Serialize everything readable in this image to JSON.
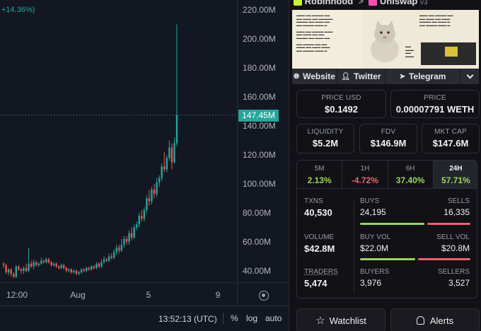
{
  "chart": {
    "change_label": "+14.36%)",
    "current_price_tag": "147.45M",
    "current_price": 147.45,
    "y_ticks": [
      "220.00M",
      "200.00M",
      "180.00M",
      "160.00M",
      "140.00M",
      "120.00M",
      "100.00M",
      "80.00M",
      "60.00M",
      "40.00M"
    ],
    "x_ticks": [
      "12:00",
      "Aug",
      "5",
      "9"
    ],
    "time": "13:52:13 (UTC)",
    "controls": [
      "%",
      "log",
      "auto"
    ],
    "colors": {
      "up": "#26a69a",
      "down": "#ef5350",
      "bg": "#131722"
    }
  },
  "chart_data": {
    "type": "candlestick",
    "ylim": [
      30,
      228
    ],
    "y_unit": "M",
    "candles": [
      [
        45,
        44,
        46,
        42
      ],
      [
        44,
        39,
        45,
        38
      ],
      [
        39,
        41,
        42,
        37
      ],
      [
        41,
        38,
        42,
        36
      ],
      [
        38,
        36,
        39,
        35
      ],
      [
        36,
        43,
        44,
        35
      ],
      [
        43,
        41,
        44,
        40
      ],
      [
        41,
        40,
        42,
        38
      ],
      [
        40,
        42,
        43,
        38
      ],
      [
        42,
        40,
        45,
        39
      ],
      [
        40,
        45,
        56,
        39
      ],
      [
        45,
        43,
        47,
        42
      ],
      [
        43,
        46,
        48,
        41
      ],
      [
        46,
        44,
        47,
        43
      ],
      [
        44,
        45,
        46,
        43
      ],
      [
        45,
        47,
        49,
        44
      ],
      [
        47,
        46,
        48,
        45
      ],
      [
        46,
        48,
        49,
        45
      ],
      [
        48,
        46,
        49,
        45
      ],
      [
        46,
        44,
        47,
        43
      ],
      [
        44,
        45,
        46,
        43
      ],
      [
        45,
        43,
        46,
        42
      ],
      [
        43,
        42,
        44,
        41
      ],
      [
        42,
        44,
        45,
        41
      ],
      [
        44,
        42,
        45,
        41
      ],
      [
        42,
        40,
        43,
        39
      ],
      [
        40,
        41,
        42,
        39
      ],
      [
        41,
        39,
        42,
        38
      ],
      [
        39,
        40,
        41,
        38
      ],
      [
        40,
        38,
        41,
        37
      ],
      [
        38,
        39,
        40,
        37
      ],
      [
        39,
        41,
        42,
        38
      ],
      [
        41,
        40,
        42,
        39
      ],
      [
        40,
        42,
        43,
        39
      ],
      [
        42,
        41,
        43,
        40
      ],
      [
        41,
        43,
        44,
        40
      ],
      [
        43,
        42,
        44,
        41
      ],
      [
        42,
        45,
        46,
        41
      ],
      [
        45,
        43,
        46,
        42
      ],
      [
        43,
        46,
        48,
        42
      ],
      [
        46,
        48,
        50,
        45
      ],
      [
        48,
        47,
        49,
        46
      ],
      [
        47,
        50,
        52,
        46
      ],
      [
        50,
        49,
        52,
        48
      ],
      [
        49,
        53,
        55,
        48
      ],
      [
        53,
        56,
        58,
        51
      ],
      [
        56,
        54,
        58,
        52
      ],
      [
        54,
        58,
        62,
        53
      ],
      [
        58,
        62,
        64,
        56
      ],
      [
        62,
        60,
        64,
        58
      ],
      [
        60,
        66,
        68,
        58
      ],
      [
        66,
        63,
        70,
        61
      ],
      [
        63,
        70,
        72,
        62
      ],
      [
        70,
        72,
        74,
        68
      ],
      [
        72,
        78,
        80,
        70
      ],
      [
        78,
        76,
        82,
        74
      ],
      [
        76,
        82,
        84,
        74
      ],
      [
        82,
        90,
        92,
        80
      ],
      [
        90,
        88,
        96,
        85
      ],
      [
        88,
        96,
        98,
        86
      ],
      [
        96,
        93,
        100,
        90
      ],
      [
        93,
        101,
        104,
        91
      ],
      [
        101,
        104,
        106,
        98
      ],
      [
        104,
        112,
        114,
        102
      ],
      [
        112,
        110,
        122,
        108
      ],
      [
        110,
        118,
        120,
        108
      ],
      [
        118,
        125,
        130,
        116
      ],
      [
        125,
        115,
        128,
        110
      ],
      [
        115,
        128,
        132,
        114
      ],
      [
        128,
        147.45,
        210,
        126
      ]
    ]
  },
  "token": {
    "chain_name": "Robinhood",
    "dex_name": "Uniswap",
    "dex_version": "v3"
  },
  "links": {
    "website": "Website",
    "twitter": "Twitter",
    "telegram": "Telegram"
  },
  "prices": {
    "usd_label": "PRICE USD",
    "usd_value": "$0.1492",
    "native_label": "PRICE",
    "native_value": "0.00007791 WETH"
  },
  "metrics": {
    "liquidity_label": "LIQUIDITY",
    "liquidity_value": "$5.2M",
    "fdv_label": "FDV",
    "fdv_value": "$146.9M",
    "mcap_label": "MKT CAP",
    "mcap_value": "$147.6M"
  },
  "timeframes": [
    {
      "label": "5M",
      "value": "2.13%",
      "dir": "pos"
    },
    {
      "label": "1H",
      "value": "-4.72%",
      "dir": "neg"
    },
    {
      "label": "6H",
      "value": "37.40%",
      "dir": "pos"
    },
    {
      "label": "24H",
      "value": "57.71%",
      "dir": "pos",
      "active": true
    }
  ],
  "stats": {
    "txns_label": "TXNS",
    "txns_value": "40,530",
    "buys_label": "BUYS",
    "buys_value": "24,195",
    "sells_label": "SELLS",
    "sells_value": "16,335",
    "buys_share": 0.597,
    "volume_label": "VOLUME",
    "volume_value": "$42.8M",
    "buyvol_label": "BUY VOL",
    "buyvol_value": "$22.0M",
    "sellvol_label": "SELL VOL",
    "sellvol_value": "$20.8M",
    "buyvol_share": 0.514,
    "traders_label": "TRADERS",
    "traders_value": "5,474",
    "buyers_label": "BUYERS",
    "buyers_value": "3,976",
    "sellers_label": "SELLERS",
    "sellers_value": "3,527",
    "buyers_share": 0.53,
    "colors": {
      "buy": "#9ad45f",
      "sell": "#f0616d"
    }
  },
  "actions": {
    "watchlist": "Watchlist",
    "alerts": "Alerts"
  },
  "icons": [
    "globe-icon",
    "person-icon",
    "send-icon",
    "chevron-down-icon",
    "star-icon",
    "bell-icon",
    "settings-icon"
  ]
}
